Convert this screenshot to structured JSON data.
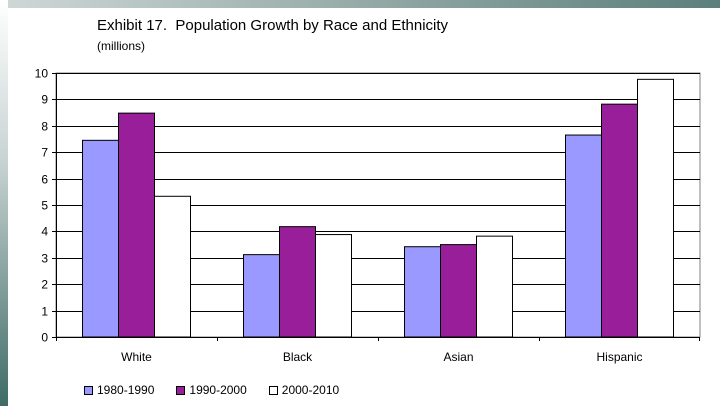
{
  "chart_data": {
    "type": "bar",
    "title": "Exhibit 17.  Population Growth by Race and Ethnicity",
    "subtitle": "(millions)",
    "categories": [
      "White",
      "Black",
      "Asian",
      "Hispanic"
    ],
    "series": [
      {
        "name": "1980-1990",
        "values": [
          7.45,
          3.12,
          3.42,
          7.65
        ],
        "color": "#9999ff"
      },
      {
        "name": "1990-2000",
        "values": [
          8.48,
          4.18,
          3.5,
          8.82
        ],
        "color": "#991e99"
      },
      {
        "name": "2000-2010",
        "values": [
          5.33,
          3.88,
          3.82,
          9.76
        ],
        "color": "#ffffff"
      }
    ],
    "ylim": [
      0,
      10
    ],
    "yticks": [
      "0",
      "1",
      "2",
      "3",
      "4",
      "5",
      "6",
      "7",
      "8",
      "9",
      "10"
    ],
    "grid": true,
    "legend_position": "bottom",
    "plot_background": "#ffffff",
    "gridline_color": "#000000"
  }
}
